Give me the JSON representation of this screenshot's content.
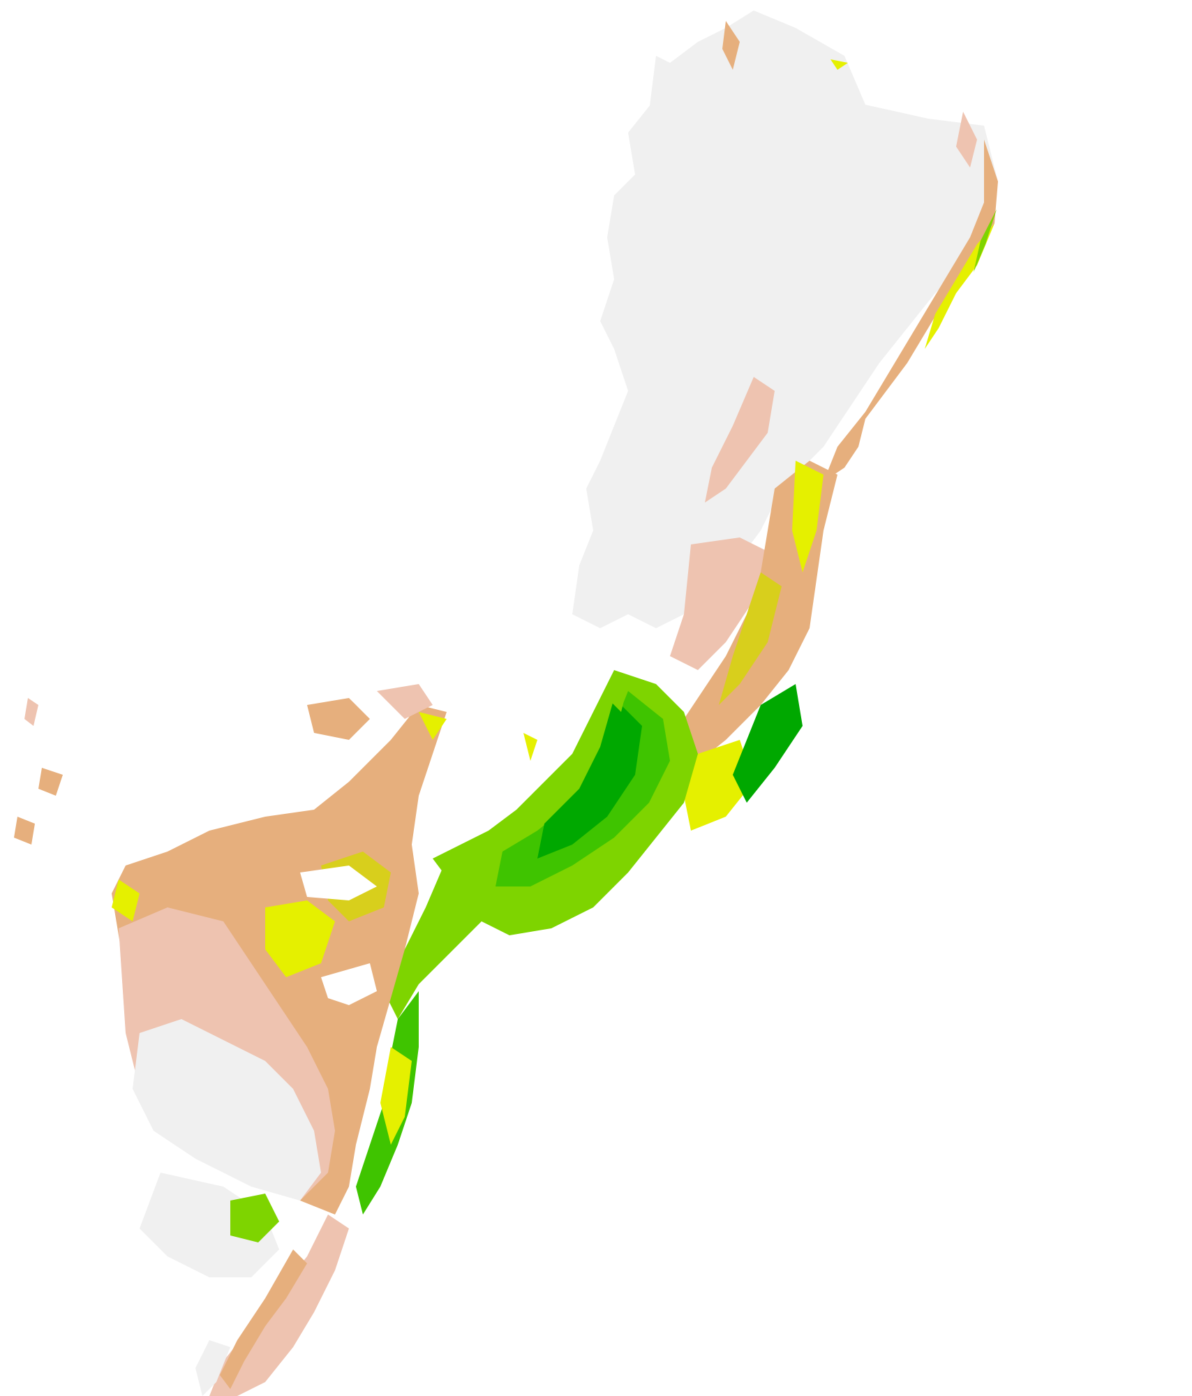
{
  "map": {
    "kind": "raster-classification",
    "background": "#ffffff",
    "classes": [
      {
        "id": "c1",
        "color": "#f0f0f0"
      },
      {
        "id": "c2",
        "color": "#eec3b0"
      },
      {
        "id": "c3",
        "color": "#e6af7d"
      },
      {
        "id": "c4",
        "color": "#d8cf1c"
      },
      {
        "id": "c5",
        "color": "#e5f000"
      },
      {
        "id": "c6",
        "color": "#7ed400"
      },
      {
        "id": "c7",
        "color": "#3fc400"
      },
      {
        "id": "c8",
        "color": "#00a800"
      }
    ]
  }
}
